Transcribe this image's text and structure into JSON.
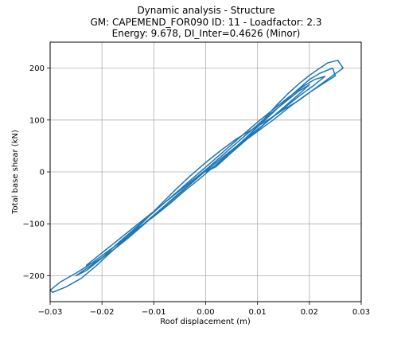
{
  "chart_data": {
    "type": "line",
    "title_lines": [
      "Dynamic analysis - Structure",
      "GM: CAPEMEND_FOR090 ID: 11 -  Loadfactor: 2.3",
      "Energy: 9.678, DI_Inter=0.4626 (Minor)"
    ],
    "xlabel": "Roof displacement (m)",
    "ylabel": "Total base shear (kN)",
    "xlim": [
      -0.03,
      0.03
    ],
    "ylim": [
      -250,
      250
    ],
    "xticks": [
      -0.03,
      -0.02,
      -0.01,
      0.0,
      0.01,
      0.02,
      0.03
    ],
    "xtick_labels": [
      "−0.03",
      "−0.02",
      "−0.01",
      "0.00",
      "0.01",
      "0.02",
      "0.03"
    ],
    "yticks": [
      -200,
      -100,
      0,
      100,
      200
    ],
    "ytick_labels": [
      "−200",
      "−100",
      "0",
      "100",
      "200"
    ],
    "grid": true,
    "color": "#1f77b4",
    "series": [
      {
        "x": [
          0.0,
          0.002,
          0.004,
          0.006,
          0.008,
          0.01,
          0.012,
          0.014,
          0.016,
          0.018,
          0.02,
          0.022,
          0.0235,
          0.0255,
          0.0265,
          0.024,
          0.021,
          0.018,
          0.015,
          0.012,
          0.009,
          0.006,
          0.003,
          0.0,
          -0.003,
          -0.006,
          -0.009,
          -0.012,
          -0.015,
          -0.018,
          -0.021,
          -0.024,
          -0.027,
          -0.0295,
          -0.03,
          -0.028,
          -0.025,
          -0.022,
          -0.019,
          -0.016,
          -0.013,
          -0.01,
          -0.007,
          -0.004,
          -0.001,
          0.002,
          0.005,
          0.008,
          0.011,
          0.014,
          0.017,
          0.02,
          0.022,
          0.0245,
          0.025,
          0.022,
          0.019,
          0.016,
          0.013,
          0.01,
          0.007,
          0.004,
          0.001,
          -0.002,
          -0.005,
          -0.008,
          -0.011,
          -0.014,
          -0.017,
          -0.02,
          -0.023,
          -0.025,
          -0.023,
          -0.02,
          -0.017,
          -0.014,
          -0.011,
          -0.008,
          -0.005,
          -0.002,
          0.001,
          0.004,
          0.007,
          0.01,
          0.013,
          0.016,
          0.019,
          0.021,
          0.023,
          0.021,
          0.018,
          0.015,
          0.012,
          0.009,
          0.006,
          0.003,
          0.0,
          -0.003,
          -0.006,
          -0.009,
          -0.012,
          -0.015,
          -0.018,
          -0.021,
          -0.023,
          -0.021,
          -0.018,
          -0.015,
          -0.012,
          -0.009,
          -0.006,
          -0.003,
          0.0,
          0.003,
          0.006,
          0.009,
          0.012,
          0.015,
          0.018,
          0.02,
          0.018,
          0.015,
          0.012,
          0.009,
          0.006,
          0.003,
          0.0
        ],
        "y": [
          0,
          10,
          28,
          50,
          68,
          88,
          110,
          132,
          152,
          170,
          186,
          200,
          210,
          215,
          200,
          182,
          160,
          138,
          120,
          100,
          82,
          64,
          42,
          18,
          -8,
          -36,
          -66,
          -96,
          -124,
          -152,
          -180,
          -205,
          -222,
          -232,
          -228,
          -212,
          -195,
          -176,
          -154,
          -132,
          -108,
          -86,
          -62,
          -36,
          -12,
          14,
          40,
          68,
          96,
          124,
          152,
          178,
          190,
          200,
          185,
          166,
          146,
          124,
          100,
          78,
          56,
          34,
          10,
          -14,
          -40,
          -66,
          -92,
          -118,
          -144,
          -166,
          -186,
          -200,
          -190,
          -166,
          -138,
          -112,
          -86,
          -60,
          -34,
          -8,
          18,
          44,
          70,
          96,
          120,
          144,
          166,
          178,
          184,
          168,
          146,
          122,
          98,
          74,
          50,
          26,
          2,
          -24,
          -50,
          -76,
          -102,
          -128,
          -152,
          -172,
          -180,
          -164,
          -140,
          -116,
          -92,
          -68,
          -44,
          -20,
          4,
          30,
          56,
          82,
          108,
          132,
          156,
          168,
          150,
          124,
          98,
          72,
          46,
          20,
          0
        ]
      }
    ]
  }
}
